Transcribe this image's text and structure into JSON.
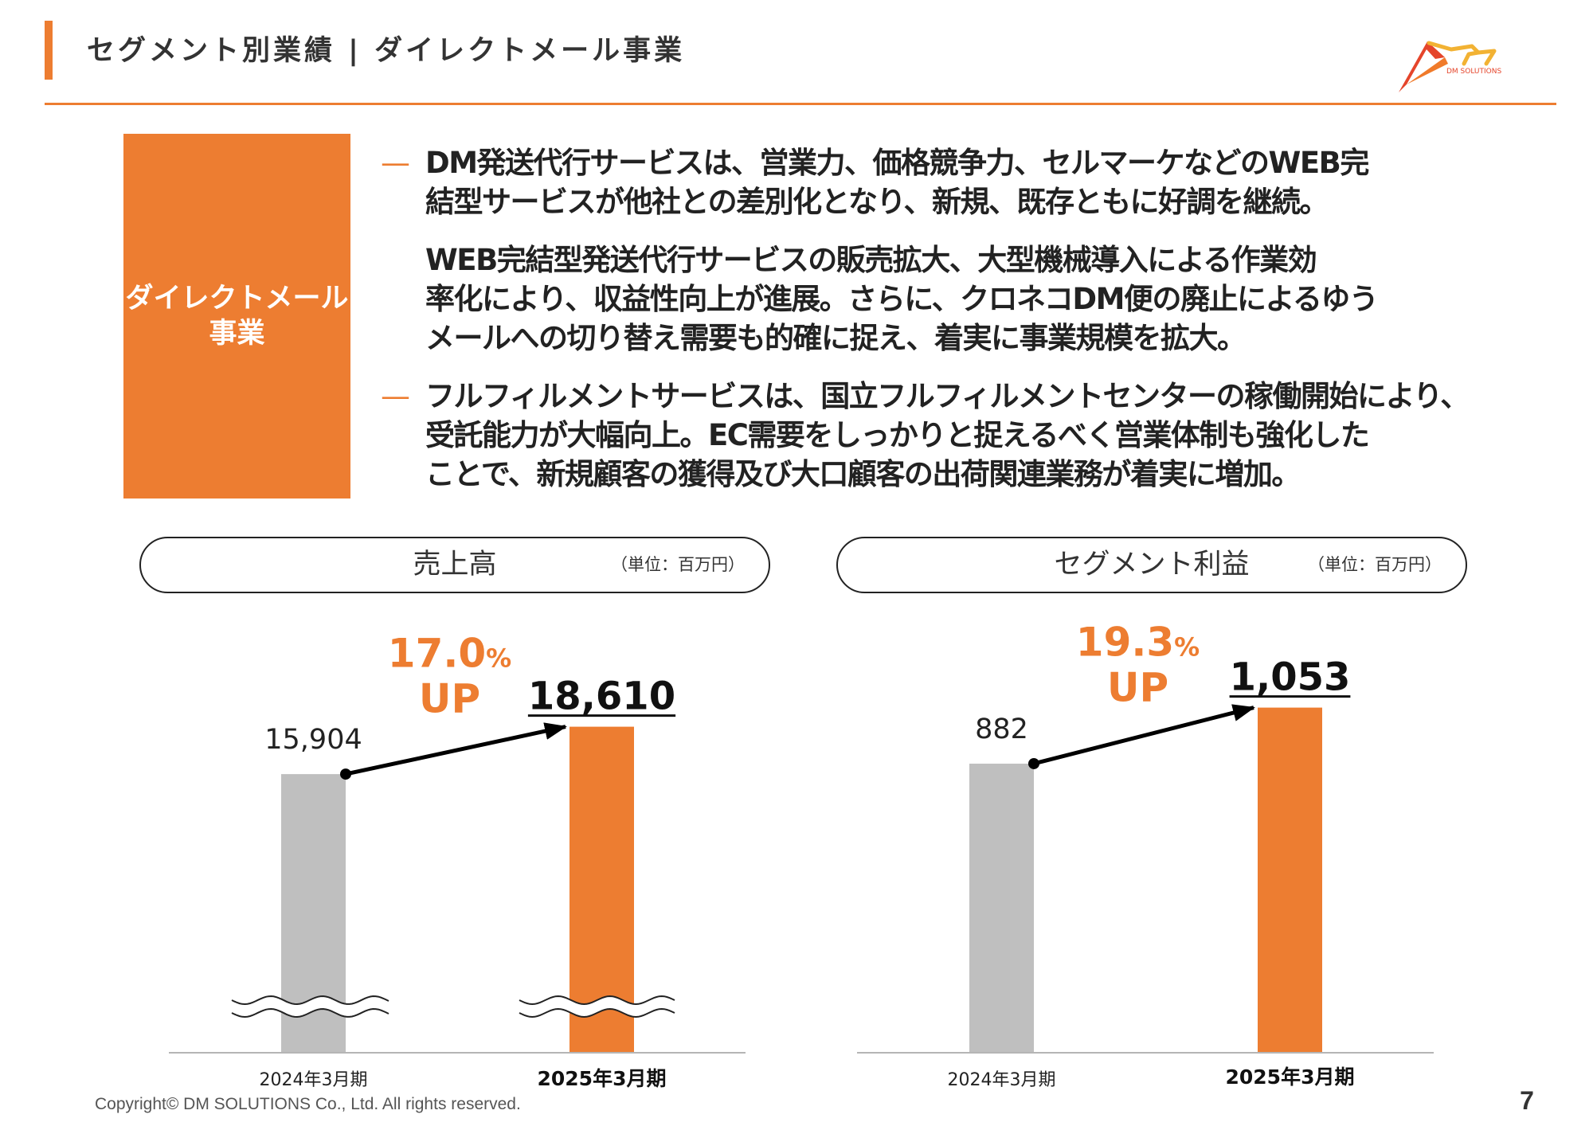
{
  "header": {
    "title": "セグメント別業績 | ダイレクトメール事業"
  },
  "logo": {
    "text": "DM SOLUTIONS",
    "icon": "dm-solutions-logo-icon"
  },
  "segment_box": {
    "line1": "ダイレクトメール",
    "line2": "事業"
  },
  "bullets": [
    {
      "dash": "—",
      "lines": [
        "DM発送代行サービスは、営業力、価格競争力、セルマーケなどのWEB完",
        "結型サービスが他社との差別化となり、新規、既存ともに好調を継続。"
      ]
    },
    {
      "lines": [
        "WEB完結型発送代行サービスの販売拡大、大型機械導入による作業効",
        "率化により、収益性向上が進展。さらに、クロネコDM便の廃止によるゆう",
        "メールへの切り替え需要も的確に捉え、着実に事業規模を拡大。"
      ]
    },
    {
      "dash": "—",
      "lines": [
        "フルフィルメントサービスは、国立フルフィルメントセンターの稼働開始により、",
        "受託能力が大幅向上。EC需要をしっかりと捉えるべく営業体制も強化した",
        "ことで、新規顧客の獲得及び大口顧客の出荷関連業務が着実に増加。"
      ]
    }
  ],
  "colors": {
    "accent": "#ED7D31",
    "prior_bar": "#BFBFBF",
    "text": "#222222"
  },
  "chart_data": [
    {
      "type": "bar",
      "title": "売上高",
      "unit": "（単位：百万円）",
      "categories": [
        "2024年3月期",
        "2025年3月期"
      ],
      "values": [
        15904,
        18610
      ],
      "data_labels": [
        "15,904",
        "18,610"
      ],
      "growth": {
        "value": "17.0",
        "unit": "%",
        "label": "UP"
      },
      "axis_break": true
    },
    {
      "type": "bar",
      "title": "セグメント利益",
      "unit": "（単位：百万円）",
      "categories": [
        "2024年3月期",
        "2025年3月期"
      ],
      "values": [
        882,
        1053
      ],
      "data_labels": [
        "882",
        "1,053"
      ],
      "growth": {
        "value": "19.3",
        "unit": "%",
        "label": "UP"
      },
      "axis_break": false
    }
  ],
  "footer": {
    "copyright": "Copyright© DM SOLUTIONS Co., Ltd. All rights reserved.",
    "page": "7"
  }
}
